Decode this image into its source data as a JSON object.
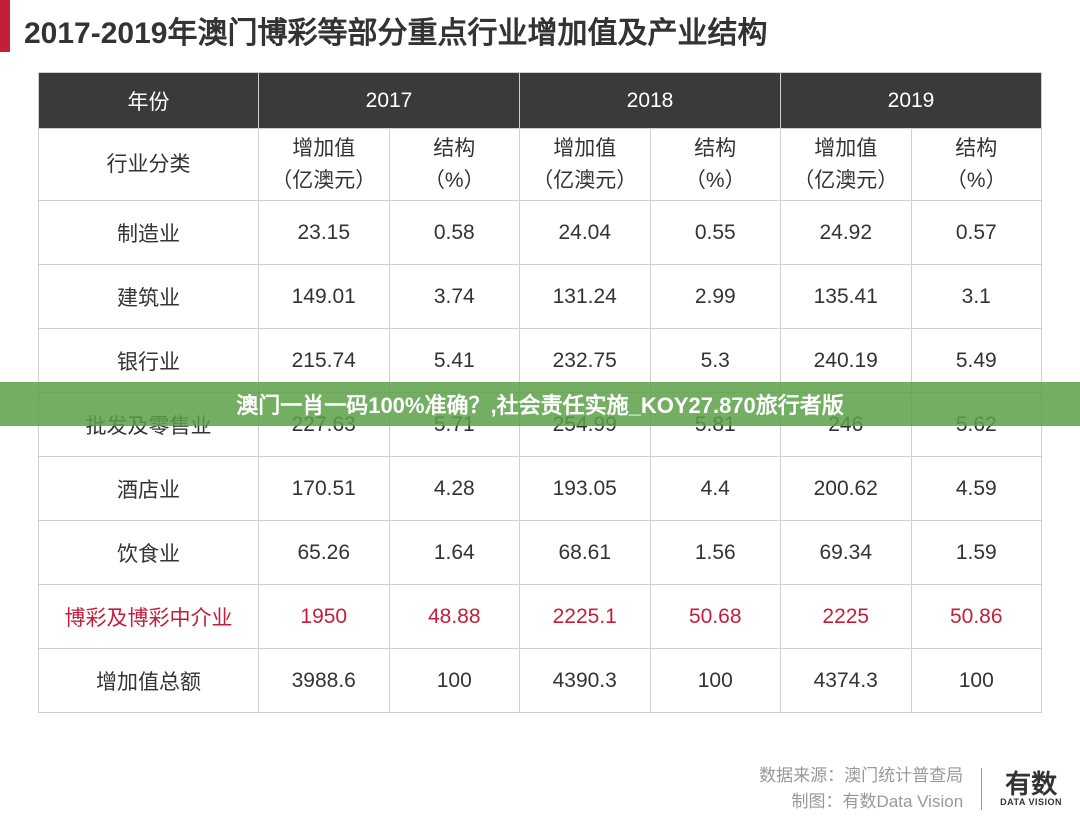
{
  "title": "2017-2019年澳门博彩等部分重点行业增加值及产业结构",
  "table": {
    "header_year_label": "年份",
    "years": [
      "2017",
      "2018",
      "2019"
    ],
    "category_label": "行业分类",
    "value_label": "增加值\n（亿澳元）",
    "structure_label": "结构\n（%）",
    "rows": [
      {
        "name": "制造业",
        "v2017": "23.15",
        "s2017": "0.58",
        "v2018": "24.04",
        "s2018": "0.55",
        "v2019": "24.92",
        "s2019": "0.57",
        "highlight": false
      },
      {
        "name": "建筑业",
        "v2017": "149.01",
        "s2017": "3.74",
        "v2018": "131.24",
        "s2018": "2.99",
        "v2019": "135.41",
        "s2019": "3.1",
        "highlight": false
      },
      {
        "name": "银行业",
        "v2017": "215.74",
        "s2017": "5.41",
        "v2018": "232.75",
        "s2018": "5.3",
        "v2019": "240.19",
        "s2019": "5.49",
        "highlight": false
      },
      {
        "name": "批发及零售业",
        "v2017": "227.63",
        "s2017": "5.71",
        "v2018": "254.99",
        "s2018": "5.81",
        "v2019": "246",
        "s2019": "5.62",
        "highlight": false
      },
      {
        "name": "酒店业",
        "v2017": "170.51",
        "s2017": "4.28",
        "v2018": "193.05",
        "s2018": "4.4",
        "v2019": "200.62",
        "s2019": "4.59",
        "highlight": false
      },
      {
        "name": "饮食业",
        "v2017": "65.26",
        "s2017": "1.64",
        "v2018": "68.61",
        "s2018": "1.56",
        "v2019": "69.34",
        "s2019": "1.59",
        "highlight": false
      },
      {
        "name": "博彩及博彩中介业",
        "v2017": "1950",
        "s2017": "48.88",
        "v2018": "2225.1",
        "s2018": "50.68",
        "v2019": "2225",
        "s2019": "50.86",
        "highlight": true
      },
      {
        "name": "增加值总额",
        "v2017": "3988.6",
        "s2017": "100",
        "v2018": "4390.3",
        "s2018": "100",
        "v2019": "4374.3",
        "s2019": "100",
        "highlight": false
      }
    ]
  },
  "overlay_text": "澳门一肖一码100%准确？,社会责任实施_KOY27.870旅行者版",
  "footer": {
    "source_label": "数据来源：澳门统计普查局",
    "chart_label": "制图：有数Data Vision",
    "logo_main": "有数",
    "logo_sub": "DATA VISION"
  },
  "colors": {
    "accent_red": "#c41e3a",
    "header_dark": "#3a3a3a",
    "border": "#d0d0d0",
    "text": "#333333",
    "footer_text": "#999999",
    "overlay_green": "rgba(90,160,70,0.85)",
    "background": "#ffffff"
  }
}
